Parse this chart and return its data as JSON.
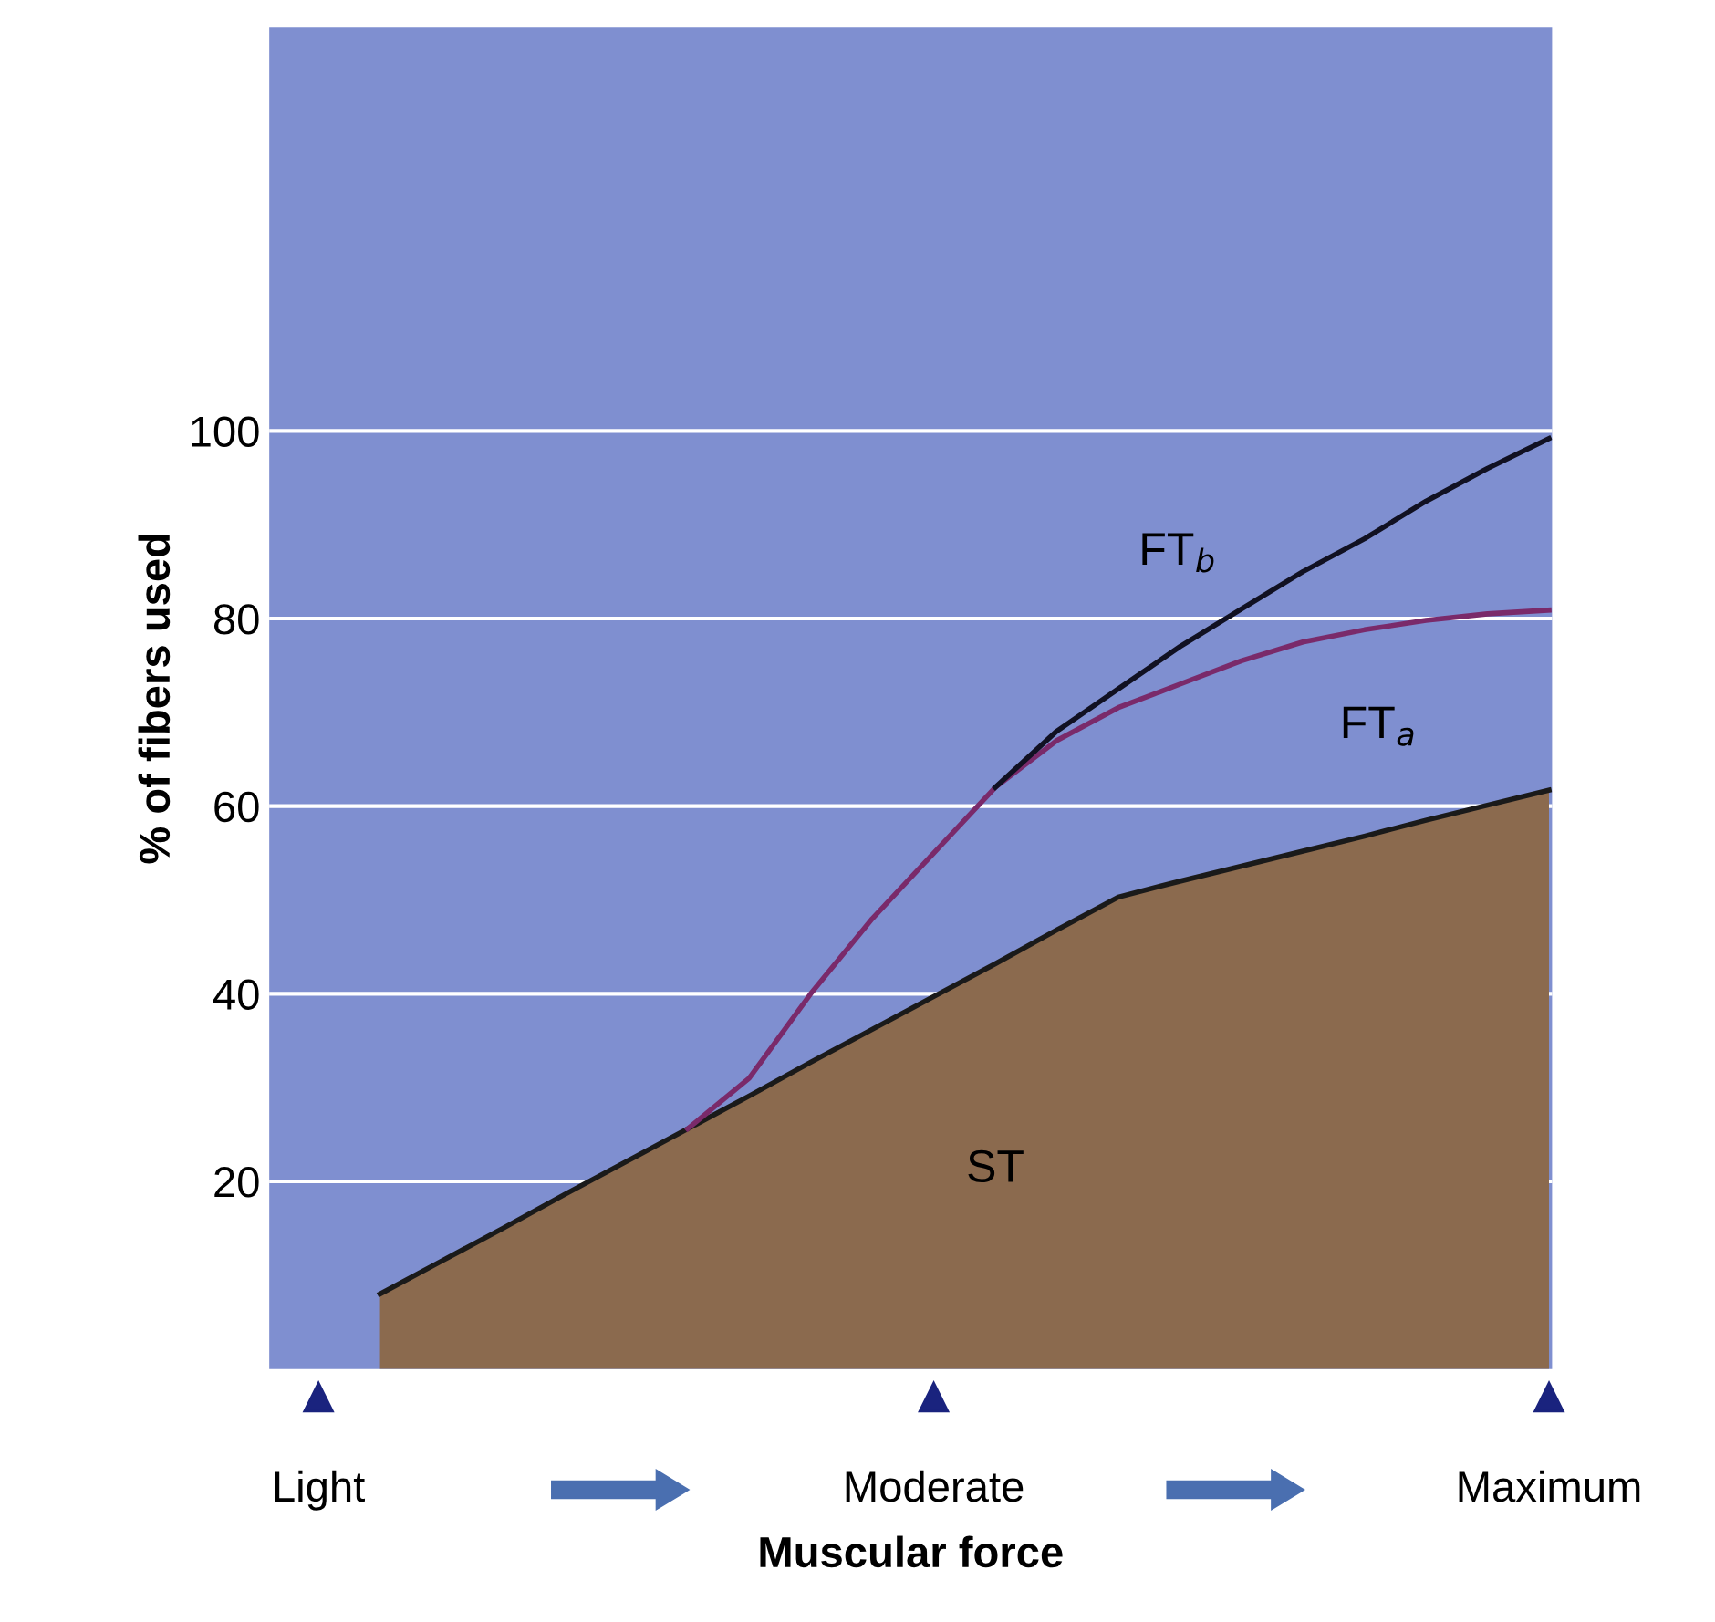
{
  "chart_data": {
    "type": "line",
    "xlabel": "Muscular force",
    "ylabel": "% of fibers used",
    "categories": [
      "Light",
      null,
      null,
      null,
      null,
      null,
      null,
      null,
      null,
      null,
      "Moderate",
      null,
      null,
      null,
      null,
      null,
      null,
      null,
      null,
      null,
      "Maximum"
    ],
    "ylim": [
      0,
      143
    ],
    "yticks": [
      20,
      40,
      60,
      80,
      100
    ],
    "grid": "y",
    "legend": false,
    "series": [
      {
        "name": "ST",
        "type": "area",
        "color": "#8b6a4e",
        "values": [
          null,
          8,
          11.5,
          15,
          18.6,
          22.1,
          25.6,
          29.1,
          32.7,
          36.2,
          39.7,
          43.2,
          46.8,
          50.3,
          52,
          53.6,
          55.2,
          56.8,
          58.5,
          60.1,
          61.7
        ]
      },
      {
        "name": "FT$_{a}$",
        "color": "#7a2a6a",
        "values": [
          null,
          null,
          null,
          null,
          null,
          null,
          25.6,
          31,
          40,
          48,
          55,
          62,
          67,
          70.5,
          73,
          75.5,
          77.5,
          78.8,
          79.8,
          80.5,
          80.9
        ]
      },
      {
        "name": "FT$_{b}$",
        "color": "#111122",
        "values": [
          null,
          null,
          null,
          null,
          null,
          null,
          null,
          null,
          null,
          null,
          null,
          62,
          68,
          72.5,
          77,
          81,
          85,
          88.5,
          92.5,
          96,
          99.2
        ]
      }
    ]
  }
}
